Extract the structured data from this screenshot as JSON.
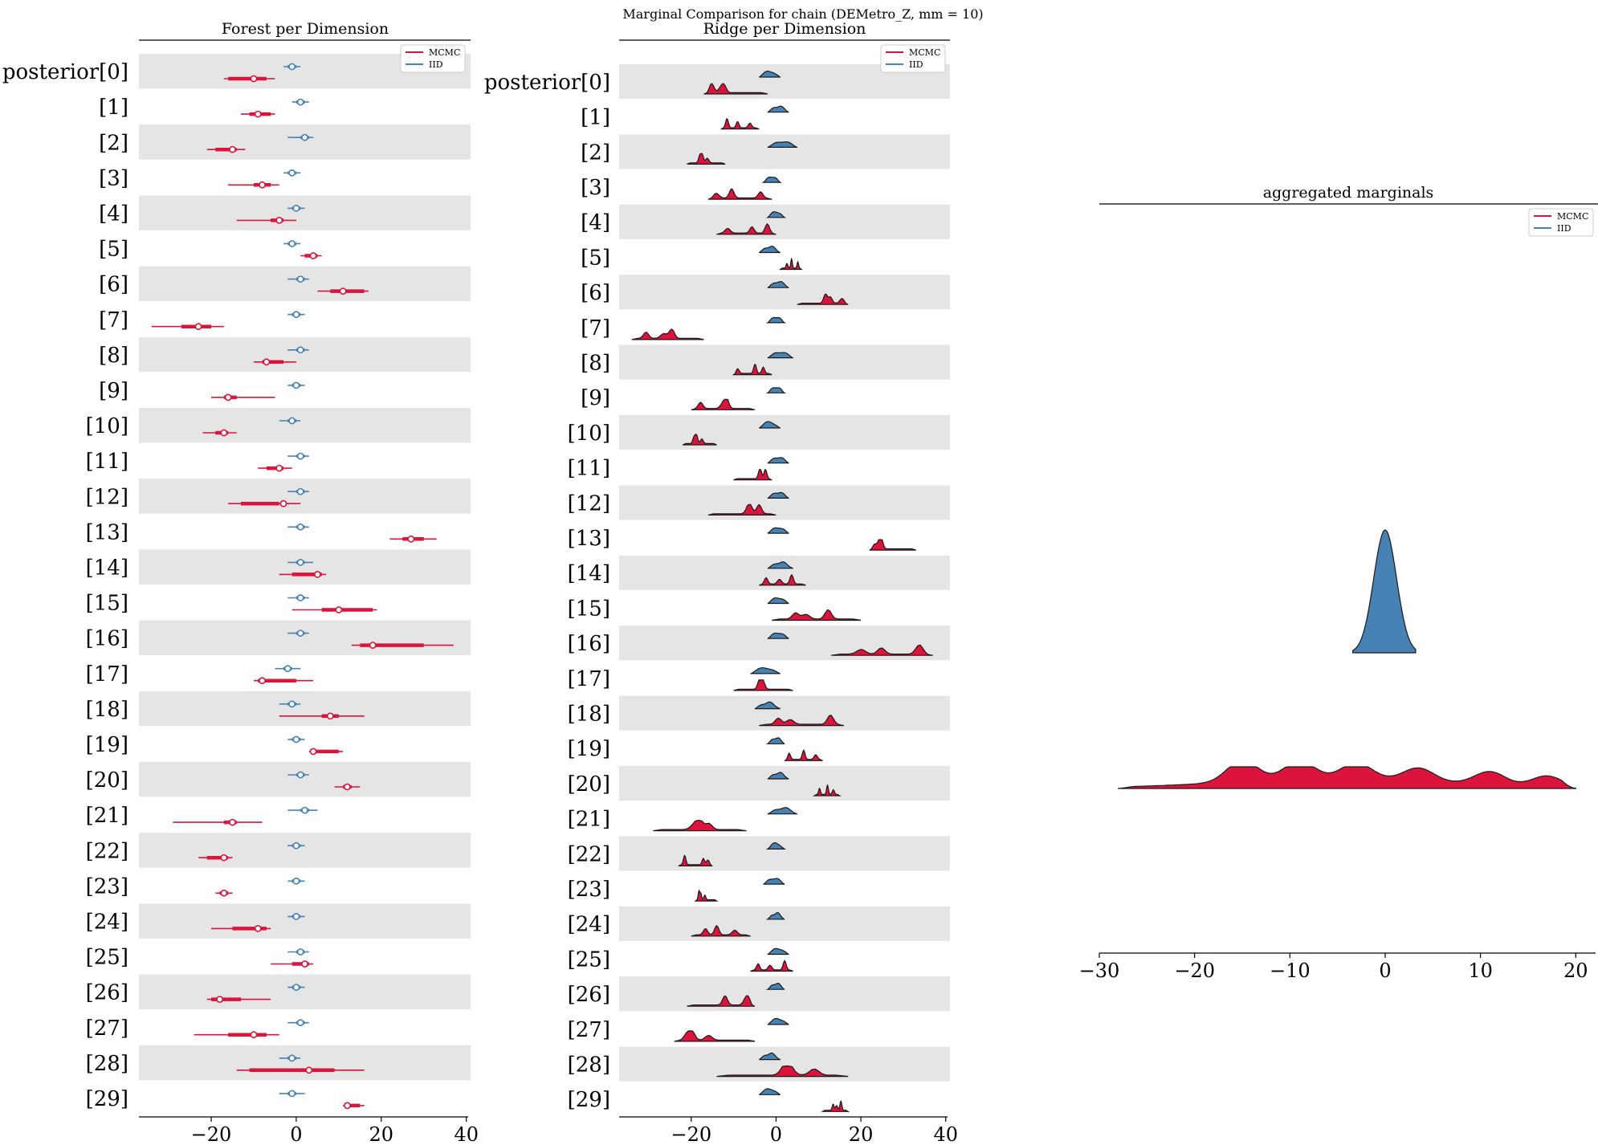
{
  "figure": {
    "suptitle": "Marginal Comparison for chain (DEMetro_Z, mm = 10)"
  },
  "colors": {
    "mcmc": "#dc143c",
    "iid": "#4682b4",
    "band": "#e5e5e5",
    "axis": "#000000"
  },
  "legend": {
    "mcmc_label": "MCMC",
    "iid_label": "IID"
  },
  "chart_data": [
    {
      "type": "forest",
      "title": "Forest per Dimension",
      "xlim": [
        -37,
        41
      ],
      "xticks": [
        -20,
        0,
        20,
        40
      ],
      "xtick_labels": [
        "−20",
        "0",
        "20",
        "40"
      ],
      "legend_placement": "top-right",
      "row_labels": [
        "posterior[0]",
        "[1]",
        "[2]",
        "[3]",
        "[4]",
        "[5]",
        "[6]",
        "[7]",
        "[8]",
        "[9]",
        "[10]",
        "[11]",
        "[12]",
        "[13]",
        "[14]",
        "[15]",
        "[16]",
        "[17]",
        "[18]",
        "[19]",
        "[20]",
        "[21]",
        "[22]",
        "[23]",
        "[24]",
        "[25]",
        "[26]",
        "[27]",
        "[28]",
        "[29]"
      ],
      "series": [
        {
          "name": "MCMC",
          "color": "#dc143c",
          "median": [
            -10,
            -9,
            -15,
            -8,
            -4,
            4,
            11,
            -23,
            -7,
            -16,
            -17,
            -4,
            -3,
            27,
            5,
            10,
            18,
            -8,
            8,
            4,
            12,
            -15,
            -17,
            -17,
            -9,
            2,
            -18,
            -10,
            3,
            12
          ],
          "hdi_low": [
            -17,
            -13,
            -21,
            -16,
            -14,
            1,
            5,
            -34,
            -10,
            -20,
            -22,
            -9,
            -16,
            22,
            -4,
            -1,
            13,
            -10,
            -4,
            3,
            9,
            -29,
            -23,
            -19,
            -20,
            -6,
            -21,
            -24,
            -14,
            11
          ],
          "hdi_high": [
            -5,
            -5,
            -12,
            -4,
            0,
            6,
            17,
            -17,
            0,
            -5,
            -14,
            -1,
            1,
            33,
            7,
            19,
            37,
            4,
            16,
            11,
            15,
            -8,
            -15,
            -15,
            -6,
            4,
            -6,
            -4,
            16,
            16
          ],
          "iqr_low": [
            -16,
            -11,
            -19,
            -10,
            -6,
            2,
            8,
            -27,
            -8,
            -17,
            -19,
            -7,
            -13,
            25,
            -1,
            6,
            15,
            -9,
            6,
            4,
            11,
            -17,
            -21,
            -18,
            -15,
            -1,
            -20,
            -16,
            -11,
            12
          ],
          "iqr_high": [
            -7,
            -6,
            -14,
            -6,
            -3,
            5,
            16,
            -20,
            -3,
            -14,
            -16,
            -3,
            -4,
            30,
            6,
            18,
            30,
            0,
            10,
            10,
            13,
            -14,
            -16,
            -16,
            -7,
            3,
            -13,
            -7,
            9,
            15
          ]
        },
        {
          "name": "IID",
          "color": "#4682b4",
          "median": [
            -1,
            1,
            2,
            -1,
            0,
            -1,
            1,
            0,
            1,
            0,
            -1,
            1,
            1,
            1,
            1,
            1,
            1,
            -2,
            -1,
            0,
            1,
            2,
            0,
            0,
            0,
            1,
            0,
            1,
            -1,
            -1
          ],
          "hdi_low": [
            -3,
            -1,
            -2,
            -3,
            -2,
            -3,
            -2,
            -2,
            -2,
            -2,
            -4,
            -2,
            -2,
            -2,
            -2,
            -2,
            -2,
            -5,
            -4,
            -2,
            -2,
            -2,
            -2,
            -2,
            -2,
            -2,
            -2,
            -2,
            -4,
            -4
          ],
          "hdi_high": [
            1,
            3,
            4,
            1,
            2,
            1,
            3,
            2,
            3,
            2,
            1,
            3,
            3,
            3,
            4,
            3,
            3,
            1,
            1,
            2,
            3,
            5,
            2,
            2,
            2,
            3,
            2,
            3,
            1,
            2
          ]
        }
      ]
    },
    {
      "type": "ridge",
      "title": "Ridge per Dimension",
      "xlim": [
        -37,
        41
      ],
      "xticks": [
        -20,
        0,
        20,
        40
      ],
      "xtick_labels": [
        "−20",
        "0",
        "20",
        "40"
      ],
      "legend_placement": "top-right",
      "row_labels": [
        "posterior[0]",
        "[1]",
        "[2]",
        "[3]",
        "[4]",
        "[5]",
        "[6]",
        "[7]",
        "[8]",
        "[9]",
        "[10]",
        "[11]",
        "[12]",
        "[13]",
        "[14]",
        "[15]",
        "[16]",
        "[17]",
        "[18]",
        "[19]",
        "[20]",
        "[21]",
        "[22]",
        "[23]",
        "[24]",
        "[25]",
        "[26]",
        "[27]",
        "[28]",
        "[29]"
      ],
      "series": [
        {
          "name": "MCMC",
          "color": "#dc143c",
          "min": [
            -17,
            -13,
            -21,
            -16,
            -14,
            1,
            5,
            -34,
            -10,
            -20,
            -22,
            -10,
            -16,
            22,
            -4,
            -1,
            13,
            -10,
            -4,
            2,
            9,
            -29,
            -23,
            -19,
            -20,
            -6,
            -21,
            -24,
            -14,
            11
          ],
          "max": [
            -2,
            -4,
            -12,
            -1,
            0,
            6,
            17,
            -17,
            -1,
            -5,
            -14,
            -1,
            0,
            33,
            7,
            20,
            37,
            4,
            16,
            11,
            15,
            -7,
            -15,
            -14,
            -6,
            4,
            -5,
            -5,
            17,
            17
          ]
        },
        {
          "name": "IID",
          "color": "#4682b4",
          "min": [
            -4,
            -2,
            -2,
            -3,
            -2,
            -4,
            -2,
            -2,
            -2,
            -2,
            -4,
            -2,
            -2,
            -2,
            -2,
            -2,
            -2,
            -6,
            -5,
            -2,
            -2,
            -2,
            -2,
            -3,
            -2,
            -2,
            -2,
            -2,
            -4,
            -4
          ],
          "max": [
            1,
            3,
            5,
            1,
            2,
            1,
            3,
            2,
            4,
            2,
            1,
            3,
            3,
            3,
            4,
            3,
            3,
            1,
            1,
            2,
            3,
            5,
            2,
            2,
            2,
            3,
            2,
            3,
            1,
            1
          ]
        }
      ]
    },
    {
      "type": "area",
      "title": "aggregated marginals",
      "xlim": [
        -30,
        22
      ],
      "xticks": [
        -30,
        -20,
        -10,
        0,
        10,
        20
      ],
      "xtick_labels": [
        "−30",
        "−20",
        "−10",
        "0",
        "10",
        "20"
      ],
      "legend_placement": "top-right",
      "series": [
        {
          "name": "IID",
          "color": "#4682b4",
          "center": 0,
          "sd": 1.2,
          "range": [
            -3.4,
            3.2
          ]
        },
        {
          "name": "MCMC",
          "color": "#dc143c",
          "range": [
            -28,
            20
          ],
          "bumps": [
            [
              -15,
              1.0
            ],
            [
              -9,
              0.85
            ],
            [
              -3,
              0.75
            ],
            [
              3.5,
              0.6
            ],
            [
              11,
              0.6
            ],
            [
              17,
              0.5
            ]
          ]
        }
      ]
    }
  ]
}
